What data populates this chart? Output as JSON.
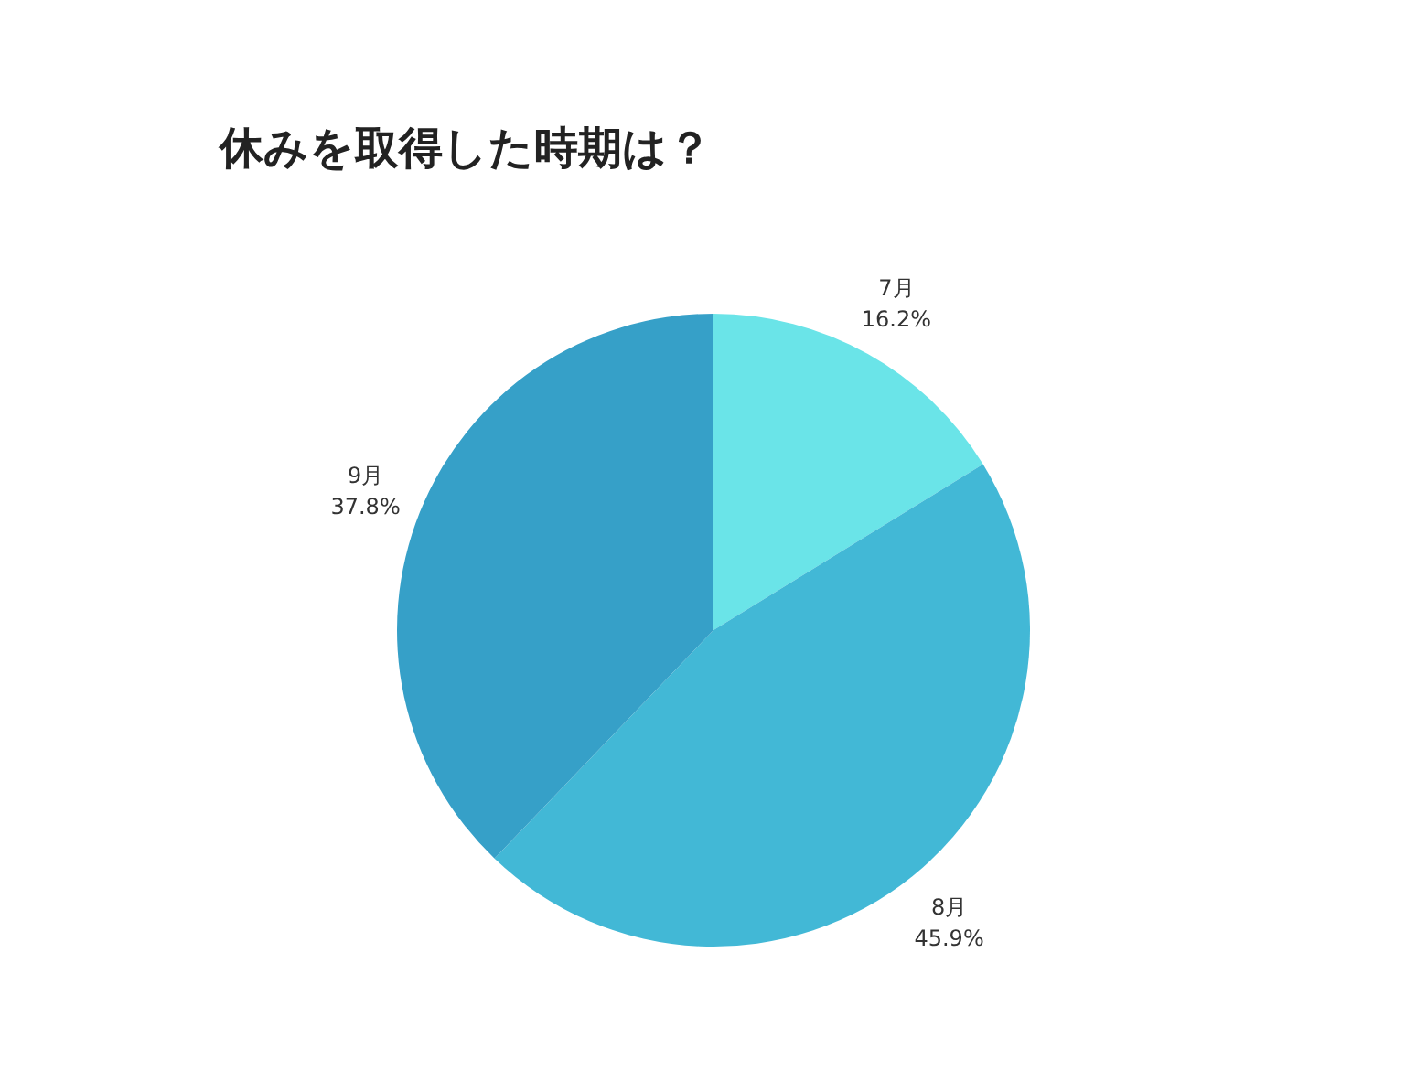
{
  "chart_data": {
    "type": "pie",
    "title": "休みを取得した時期は？",
    "categories": [
      "7月",
      "8月",
      "9月"
    ],
    "values": [
      16.2,
      45.9,
      37.8
    ],
    "value_labels": [
      "16.2%",
      "45.9%",
      "37.8%"
    ],
    "colors": [
      "#6ae4e8",
      "#42b8d6",
      "#36a0c8"
    ],
    "legend": false
  }
}
